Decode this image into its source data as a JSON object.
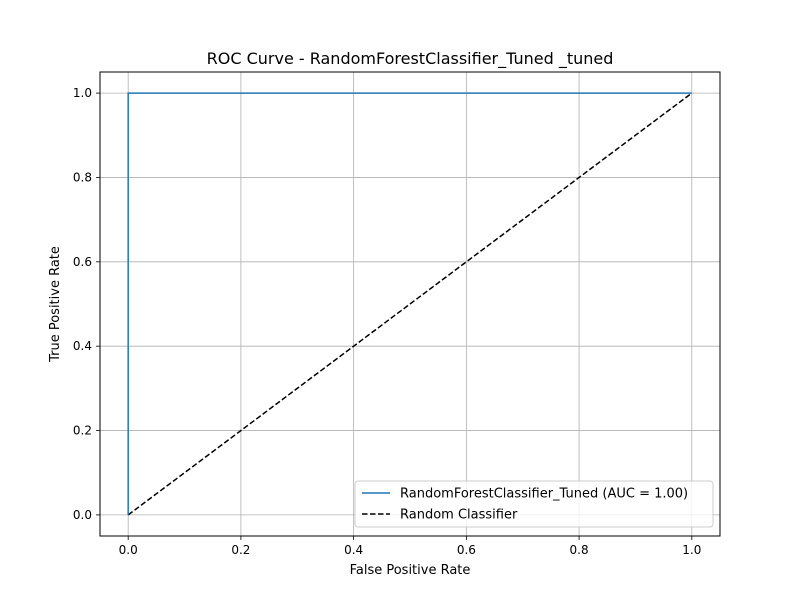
{
  "chart_data": {
    "type": "line",
    "title": "ROC Curve - RandomForestClassifier_Tuned _tuned",
    "xlabel": "False Positive Rate",
    "ylabel": "True Positive Rate",
    "xlim": [
      -0.05,
      1.05
    ],
    "ylim": [
      -0.05,
      1.05
    ],
    "xticks": [
      "0.0",
      "0.2",
      "0.4",
      "0.6",
      "0.8",
      "1.0"
    ],
    "yticks": [
      "0.0",
      "0.2",
      "0.4",
      "0.6",
      "0.8",
      "1.0"
    ],
    "grid": true,
    "legend_position": "lower-right",
    "series": [
      {
        "name": "RandomForestClassifier_Tuned (AUC = 1.00)",
        "color": "#1f77b4",
        "style": "solid",
        "x": [
          0.0,
          0.0,
          1.0
        ],
        "y": [
          0.0,
          1.0,
          1.0
        ]
      },
      {
        "name": "Random Classifier",
        "color": "#000000",
        "style": "dashed",
        "x": [
          0.0,
          1.0
        ],
        "y": [
          0.0,
          1.0
        ]
      }
    ]
  }
}
